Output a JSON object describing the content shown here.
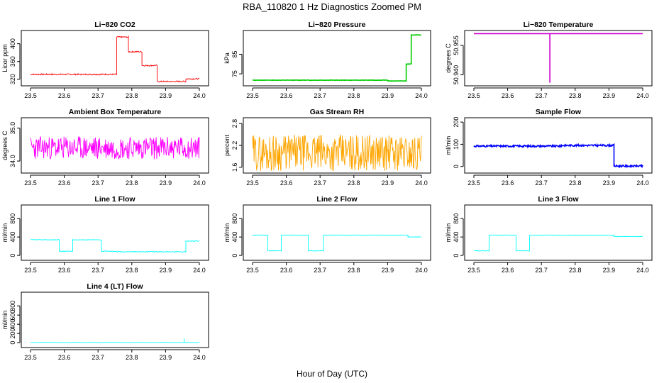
{
  "figure": {
    "title": "RBA_110820  1 Hz Diagnostics Zoomed PM",
    "xlabel": "Hour of Day (UTC)"
  },
  "chart_data": [
    {
      "type": "line",
      "title": "Li−820 CO2",
      "ylabel": "Licor ppm",
      "color": "#ff0000",
      "xlim": [
        23.5,
        24.0
      ],
      "ylim": [
        310,
        425
      ],
      "xticks": [
        "23.5",
        "23.6",
        "23.7",
        "23.8",
        "23.9",
        "24.0"
      ],
      "yticks": [
        {
          "v": 320,
          "l": "320"
        },
        {
          "v": 360,
          "l": "360"
        },
        {
          "v": 400,
          "l": "400"
        }
      ],
      "segments": [
        [
          23.5,
          23.755,
          331
        ],
        [
          23.755,
          23.79,
          415
        ],
        [
          23.79,
          23.83,
          382
        ],
        [
          23.83,
          23.875,
          351
        ],
        [
          23.875,
          23.96,
          315
        ],
        [
          23.96,
          24.0,
          321
        ]
      ],
      "noise": 1.5
    },
    {
      "type": "line",
      "title": "Li−820 Pressure",
      "ylabel": "kPa",
      "color": "#00cc00",
      "xlim": [
        23.5,
        24.0
      ],
      "ylim": [
        70,
        96
      ],
      "xticks": [
        "23.5",
        "23.6",
        "23.7",
        "23.8",
        "23.9",
        "24.0"
      ],
      "yticks": [
        {
          "v": 75,
          "l": "75"
        },
        {
          "v": 85,
          "l": "85"
        }
      ],
      "segments": [
        [
          23.5,
          23.9,
          71.8
        ],
        [
          23.9,
          23.955,
          71.4
        ],
        [
          23.955,
          23.97,
          80
        ],
        [
          23.97,
          24.0,
          94.8
        ]
      ],
      "noise": 0.1
    },
    {
      "type": "line",
      "title": "Li−820 Temperature",
      "ylabel": "degrees C",
      "color": "#cc00cc",
      "xlim": [
        23.5,
        24.0
      ],
      "ylim": [
        50.9355,
        50.9615
      ],
      "xticks": [
        "23.5",
        "23.6",
        "23.7",
        "23.8",
        "23.9",
        "24.0"
      ],
      "yticks": [
        {
          "v": 50.94,
          "l": "50.940"
        },
        {
          "v": 50.955,
          "l": "50.955"
        }
      ],
      "segments": [
        [
          23.5,
          24.0,
          50.961
        ]
      ],
      "spikes": [
        {
          "x": 23.725,
          "y": 50.936
        }
      ],
      "noise": 0
    },
    {
      "type": "line",
      "title": "Ambient Box Temperature",
      "ylabel": "degrees C",
      "color": "#ff00ff",
      "xlim": [
        23.5,
        24.0
      ],
      "ylim": [
        33.7,
        35.25
      ],
      "xticks": [
        "23.5",
        "23.6",
        "23.7",
        "23.8",
        "23.9",
        "24.0"
      ],
      "yticks": [
        {
          "v": 34.0,
          "l": "34.0"
        },
        {
          "v": 35.0,
          "l": "35.0"
        }
      ],
      "segments": [
        [
          23.5,
          24.0,
          34.4
        ]
      ],
      "noise": 0.35
    },
    {
      "type": "line",
      "title": "Gas Stream RH",
      "ylabel": "percent",
      "color": "#ffa500",
      "xlim": [
        23.5,
        24.0
      ],
      "ylim": [
        1.5,
        2.9
      ],
      "xticks": [
        "23.5",
        "23.6",
        "23.7",
        "23.8",
        "23.9",
        "24.0"
      ],
      "yticks": [
        {
          "v": 1.6,
          "l": "1.6"
        },
        {
          "v": 2.2,
          "l": "2.2"
        },
        {
          "v": 2.8,
          "l": "2.8"
        }
      ],
      "segments": [
        [
          23.5,
          24.0,
          2.0
        ]
      ],
      "noise": 0.5
    },
    {
      "type": "line",
      "title": "Sample Flow",
      "ylabel": "ml/min",
      "color": "#0000ff",
      "xlim": [
        23.5,
        24.0
      ],
      "ylim": [
        -20,
        210
      ],
      "xticks": [
        "23.5",
        "23.6",
        "23.7",
        "23.8",
        "23.9",
        "24.0"
      ],
      "yticks": [
        {
          "v": 0,
          "l": "0"
        },
        {
          "v": 100,
          "l": "100"
        },
        {
          "v": 200,
          "l": "200"
        }
      ],
      "segments": [
        [
          23.5,
          23.76,
          92
        ],
        [
          23.76,
          23.915,
          95
        ],
        [
          23.915,
          24.0,
          2
        ]
      ],
      "noise": 4
    },
    {
      "type": "line",
      "title": "Line 1 Flow",
      "ylabel": "ml/min",
      "color": "#00ffff",
      "xlim": [
        23.5,
        24.0
      ],
      "ylim": [
        -60,
        1050
      ],
      "xticks": [
        "23.5",
        "23.6",
        "23.7",
        "23.8",
        "23.9",
        "24.0"
      ],
      "yticks": [
        {
          "v": 0,
          "l": "0"
        },
        {
          "v": 400,
          "l": "400"
        },
        {
          "v": 800,
          "l": "800"
        }
      ],
      "segments": [
        [
          23.5,
          23.585,
          340
        ],
        [
          23.585,
          23.625,
          90
        ],
        [
          23.625,
          23.71,
          340
        ],
        [
          23.71,
          23.755,
          90
        ],
        [
          23.755,
          23.96,
          80
        ],
        [
          23.96,
          24.0,
          310
        ]
      ],
      "noise": 8
    },
    {
      "type": "line",
      "title": "Line 2 Flow",
      "ylabel": "ml/min",
      "color": "#00ffff",
      "xlim": [
        23.5,
        24.0
      ],
      "ylim": [
        -60,
        1050
      ],
      "xticks": [
        "23.5",
        "23.6",
        "23.7",
        "23.8",
        "23.9",
        "24.0"
      ],
      "yticks": [
        {
          "v": 0,
          "l": "0"
        },
        {
          "v": 400,
          "l": "400"
        },
        {
          "v": 800,
          "l": "800"
        }
      ],
      "segments": [
        [
          23.5,
          23.545,
          440
        ],
        [
          23.545,
          23.585,
          100
        ],
        [
          23.585,
          23.665,
          440
        ],
        [
          23.665,
          23.71,
          100
        ],
        [
          23.71,
          23.96,
          440
        ],
        [
          23.96,
          24.0,
          400
        ]
      ],
      "noise": 6
    },
    {
      "type": "line",
      "title": "Line 3 Flow",
      "ylabel": "ml/min",
      "color": "#00ffff",
      "xlim": [
        23.5,
        24.0
      ],
      "ylim": [
        -60,
        1050
      ],
      "xticks": [
        "23.5",
        "23.6",
        "23.7",
        "23.8",
        "23.9",
        "24.0"
      ],
      "yticks": [
        {
          "v": 0,
          "l": "0"
        },
        {
          "v": 400,
          "l": "400"
        },
        {
          "v": 800,
          "l": "800"
        }
      ],
      "segments": [
        [
          23.5,
          23.545,
          100
        ],
        [
          23.545,
          23.585,
          440
        ],
        [
          23.585,
          23.625,
          440
        ],
        [
          23.625,
          23.665,
          100
        ],
        [
          23.665,
          23.915,
          440
        ],
        [
          23.915,
          24.0,
          410
        ]
      ],
      "noise": 6
    },
    {
      "type": "line",
      "title": "Line 4 (LT) Flow",
      "ylabel": "ml/min",
      "color": "#00ffff",
      "xlim": [
        23.5,
        24.0
      ],
      "ylim": [
        -60,
        1050
      ],
      "xticks": [
        "23.5",
        "23.6",
        "23.7",
        "23.8",
        "23.9",
        "24.0"
      ],
      "yticks": [
        {
          "v": 0,
          "l": "0"
        },
        {
          "v": 200,
          "l": "200"
        },
        {
          "v": 400,
          "l": "400"
        },
        {
          "v": 600,
          "l": "600"
        },
        {
          "v": 800,
          "l": "800"
        }
      ],
      "segments": [
        [
          23.5,
          24.0,
          5
        ]
      ],
      "spikes": [
        {
          "x": 23.955,
          "y": 90
        }
      ],
      "noise": 2
    }
  ]
}
